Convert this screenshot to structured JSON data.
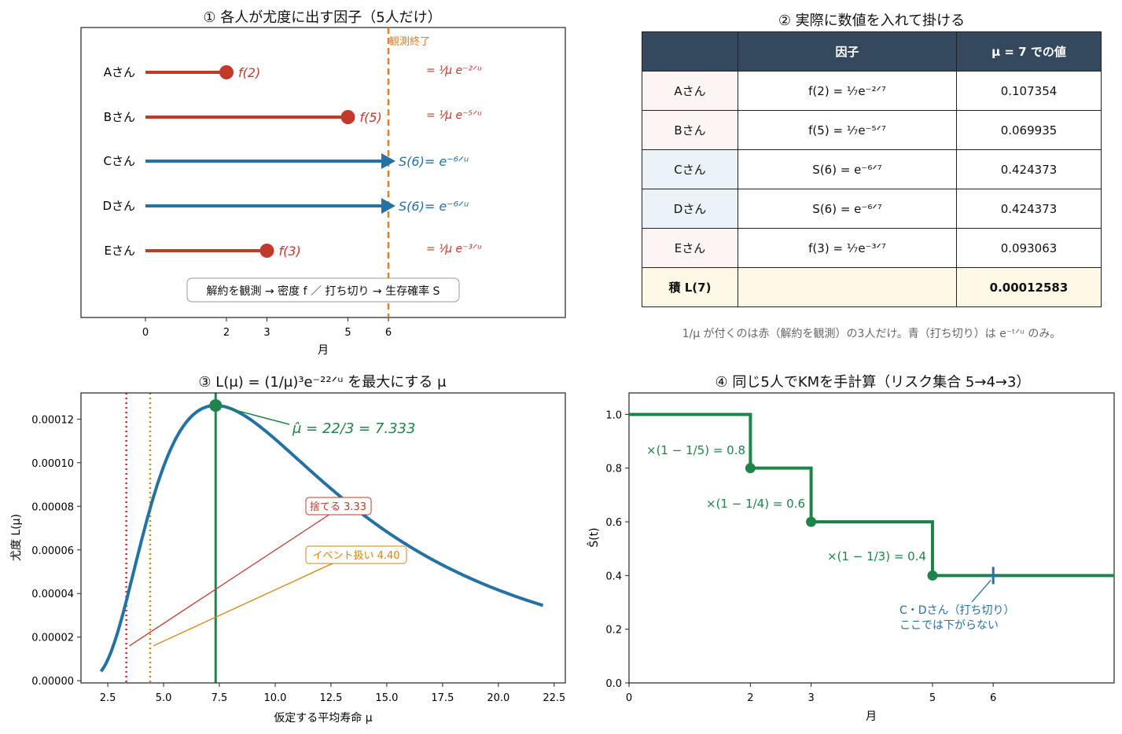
{
  "colors": {
    "red": "#c0392b",
    "blue": "#2471a3",
    "orange": "#e67e22",
    "green": "#1e8449",
    "curve_blue": "#2471a3",
    "header_dark": "#34495e",
    "row_red_bg": "#fdf5f3",
    "row_blue_bg": "#eaf1f7",
    "row_total_bg": "#fef9e7"
  },
  "panel1": {
    "title": "① 各人が尤度に出す因子（5人だけ）",
    "end_label": "観測終了",
    "xlabel": "月",
    "box": "解約を観測 → 密度 f ／ 打ち切り → 生存確率 S"
  },
  "panel2": {
    "title": "② 実際に数値を入れて掛ける",
    "header": [
      "",
      "因子",
      "μ = 7 での値"
    ],
    "rows": [
      {
        "name": "Aさん",
        "factor": "f(2) = ¹⁄₇e⁻²ᐟ⁷",
        "value": "0.107354",
        "kind": "event"
      },
      {
        "name": "Bさん",
        "factor": "f(5) = ¹⁄₇e⁻⁵ᐟ⁷",
        "value": "0.069935",
        "kind": "event"
      },
      {
        "name": "Cさん",
        "factor": "S(6) = e⁻⁶ᐟ⁷",
        "value": "0.424373",
        "kind": "censor"
      },
      {
        "name": "Dさん",
        "factor": "S(6) = e⁻⁶ᐟ⁷",
        "value": "0.424373",
        "kind": "censor"
      },
      {
        "name": "Eさん",
        "factor": "f(3) = ¹⁄₇e⁻³ᐟ⁷",
        "value": "0.093063",
        "kind": "event"
      }
    ],
    "total": {
      "name": "積 L(7)",
      "factor": "",
      "value": "0.00012583"
    },
    "note": "1/μ が付くのは赤（解約を観測）の3人だけ。青（打ち切り）は e⁻ᵗᐟᵘ のみ。"
  },
  "panel3": {
    "title": "③ L(μ) = (1/μ)³e⁻²²ᐟᵘ を最大にする μ",
    "mle_label": "μ̂ = 22/3 = 7.333",
    "discard_label": "捨てる 3.33",
    "event_label": "イベント扱い 4.40",
    "xlabel": "仮定する平均寿命 μ",
    "ylabel": "尤度 L(μ)"
  },
  "panel4": {
    "title": "④ 同じ5人でKMを手計算（リスク集合 5→4→3）",
    "xlabel": "月",
    "ylabel": "Ŝ(t)",
    "step_labels": [
      "×(1 − 1/5) = 0.8",
      "×(1 − 1/4) = 0.6",
      "×(1 − 1/3) = 0.4"
    ],
    "censor_note": [
      "C・Dさん（打ち切り）",
      "ここでは下がらない"
    ]
  },
  "chart_data": [
    {
      "type": "timeline",
      "x_ticks": [
        0,
        2,
        3,
        5,
        6
      ],
      "end_of_observation": 6,
      "subjects": [
        {
          "name": "Aさん",
          "time": 2,
          "status": "event",
          "factor_label": "f(2)",
          "formula": "= ¹⁄μ e⁻²ᐟᵘ"
        },
        {
          "name": "Bさん",
          "time": 5,
          "status": "event",
          "factor_label": "f(5)",
          "formula": "= ¹⁄μ e⁻⁵ᐟᵘ"
        },
        {
          "name": "Cさん",
          "time": 6,
          "status": "censored",
          "factor_label": "S(6)= e⁻⁶ᐟᵘ",
          "formula": ""
        },
        {
          "name": "Dさん",
          "time": 6,
          "status": "censored",
          "factor_label": "S(6)= e⁻⁶ᐟᵘ",
          "formula": ""
        },
        {
          "name": "Eさん",
          "time": 3,
          "status": "event",
          "factor_label": "f(3)",
          "formula": "= ¹⁄μ e⁻³ᐟᵘ"
        }
      ]
    },
    {
      "type": "table",
      "columns": [
        "",
        "因子",
        "μ = 7 での値"
      ],
      "values": [
        0.107354,
        0.069935,
        0.424373,
        0.424373,
        0.093063
      ],
      "product": 0.00012583
    },
    {
      "type": "line",
      "function": "L(mu) = mu^-3 * exp(-22/mu)",
      "x_range": [
        2.2,
        22
      ],
      "xlim": [
        1.3,
        23
      ],
      "ylim": [
        -1e-06,
        0.000132
      ],
      "x_ticks": [
        "2.5",
        "5.0",
        "7.5",
        "10.0",
        "12.5",
        "15.0",
        "17.5",
        "20.0",
        "22.5"
      ],
      "y_ticks": [
        "0.00000",
        "0.00002",
        "0.00004",
        "0.00006",
        "0.00008",
        "0.00010",
        "0.00012"
      ],
      "mle": 7.333,
      "discard_estimate": 3.33,
      "event_estimate": 4.4
    },
    {
      "type": "step",
      "x": [
        0,
        2,
        3,
        5,
        6,
        8
      ],
      "y": [
        1.0,
        0.8,
        0.6,
        0.4,
        0.4,
        0.4
      ],
      "event_times": [
        2,
        3,
        5
      ],
      "censor_time": 6,
      "xlim": [
        0,
        8
      ],
      "ylim": [
        0,
        1.08
      ],
      "x_ticks": [
        0,
        2,
        3,
        5,
        6
      ],
      "y_ticks": [
        "0.0",
        "0.2",
        "0.4",
        "0.6",
        "0.8",
        "1.0"
      ]
    }
  ]
}
